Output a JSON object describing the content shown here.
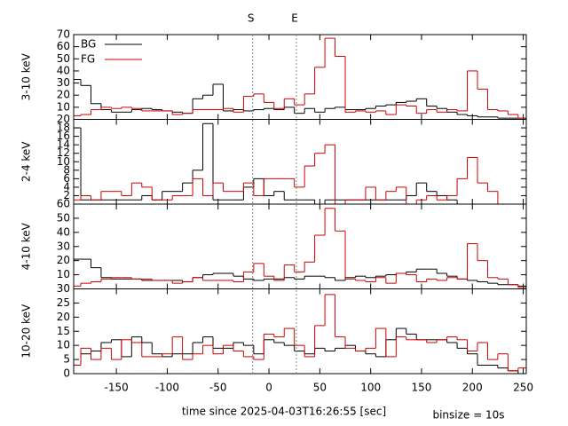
{
  "x_axis": {
    "label": "time since 2025-04-03T16:26:55 [sec]",
    "xlim": [
      -192,
      253
    ],
    "xticks": [
      -150,
      -100,
      -50,
      0,
      50,
      100,
      150,
      200,
      250
    ],
    "bins": [
      -195,
      -185,
      -175,
      -165,
      -155,
      -145,
      -135,
      -125,
      -115,
      -105,
      -95,
      -85,
      -75,
      -65,
      -55,
      -45,
      -35,
      -25,
      -15,
      -5,
      5,
      15,
      25,
      35,
      45,
      55,
      65,
      75,
      85,
      95,
      105,
      115,
      125,
      135,
      145,
      155,
      165,
      175,
      185,
      195,
      205,
      215,
      225,
      235,
      245,
      255
    ]
  },
  "annotation": "binsize = 10s",
  "markers": [
    {
      "label": "S",
      "x": -16
    },
    {
      "label": "E",
      "x": 27
    }
  ],
  "chart_data": [
    {
      "type": "histogram",
      "ylabel": "3-10 keV",
      "ylim": [
        0,
        70
      ],
      "yticks": [
        10,
        20,
        30,
        40,
        50,
        60,
        70
      ],
      "legend": "upper left",
      "series": [
        {
          "name": "BG",
          "color": "#000000",
          "values": [
            33,
            28,
            13,
            8,
            6,
            6,
            8,
            9,
            8,
            7,
            6,
            5,
            17,
            20,
            29,
            7,
            8,
            7,
            8,
            9,
            8,
            10,
            5,
            9,
            6,
            9,
            10,
            8,
            8,
            9,
            11,
            12,
            14,
            15,
            17,
            11,
            9,
            6,
            4,
            3,
            2,
            2,
            1,
            1,
            1
          ]
        },
        {
          "name": "FG",
          "color": "#cc0000",
          "values": [
            3,
            4,
            8,
            10,
            9,
            10,
            9,
            7,
            7,
            7,
            4,
            5,
            8,
            8,
            8,
            9,
            6,
            19,
            21,
            14,
            9,
            17,
            12,
            21,
            43,
            67,
            52,
            6,
            7,
            6,
            7,
            4,
            12,
            11,
            5,
            8,
            6,
            8,
            7,
            40,
            25,
            8,
            7,
            4,
            1
          ]
        }
      ]
    },
    {
      "type": "histogram",
      "ylabel": "2-4 keV",
      "ylim": [
        0,
        20
      ],
      "yticks": [
        2,
        4,
        6,
        8,
        10,
        12,
        14,
        16,
        18,
        20
      ],
      "series": [
        {
          "name": "BG",
          "color": "#000000",
          "values": [
            18,
            1,
            1,
            1,
            1,
            1,
            1,
            2,
            1,
            3,
            3,
            5,
            8,
            19,
            1,
            1,
            1,
            4,
            6,
            2,
            3,
            1,
            1,
            1,
            0,
            1,
            1,
            1,
            1,
            1,
            1,
            1,
            1,
            2,
            5,
            3,
            2,
            1,
            0,
            0,
            0,
            0,
            0,
            0,
            0
          ]
        },
        {
          "name": "FG",
          "color": "#cc0000",
          "values": [
            1,
            2,
            1,
            3,
            3,
            2,
            5,
            4,
            1,
            1,
            2,
            2,
            6,
            2,
            5,
            3,
            3,
            5,
            2,
            6,
            6,
            6,
            4,
            9,
            12,
            14,
            0,
            1,
            1,
            4,
            1,
            3,
            4,
            0,
            1,
            2,
            1,
            2,
            6,
            11,
            5,
            3,
            0,
            0,
            0
          ]
        }
      ]
    },
    {
      "type": "histogram",
      "ylabel": "4-10 keV",
      "ylim": [
        0,
        60
      ],
      "yticks": [
        10,
        20,
        30,
        40,
        50,
        60
      ],
      "series": [
        {
          "name": "BG",
          "color": "#000000",
          "values": [
            21,
            21,
            15,
            8,
            7,
            7,
            7,
            6,
            6,
            6,
            6,
            5,
            8,
            10,
            11,
            11,
            9,
            7,
            6,
            7,
            7,
            8,
            7,
            9,
            9,
            8,
            6,
            8,
            9,
            8,
            9,
            10,
            11,
            12,
            14,
            14,
            11,
            9,
            7,
            6,
            5,
            4,
            3,
            3,
            2
          ]
        },
        {
          "name": "FG",
          "color": "#cc0000",
          "values": [
            2,
            4,
            5,
            7,
            8,
            8,
            7,
            7,
            6,
            6,
            4,
            5,
            8,
            6,
            6,
            6,
            5,
            12,
            18,
            9,
            6,
            17,
            12,
            19,
            38,
            57,
            41,
            7,
            6,
            5,
            8,
            4,
            11,
            10,
            5,
            7,
            6,
            8,
            7,
            32,
            20,
            8,
            7,
            3,
            1
          ]
        }
      ]
    },
    {
      "type": "histogram",
      "ylabel": "10-20 keV",
      "ylim": [
        0,
        30
      ],
      "yticks": [
        0,
        5,
        10,
        15,
        20,
        25,
        30
      ],
      "series": [
        {
          "name": "BG",
          "color": "#000000",
          "values": [
            3,
            7,
            8,
            11,
            12,
            6,
            13,
            11,
            7,
            6,
            7,
            7,
            11,
            13,
            9,
            9,
            11,
            10,
            7,
            12,
            11,
            10,
            8,
            7,
            9,
            8,
            9,
            10,
            8,
            7,
            6,
            12,
            16,
            14,
            12,
            12,
            12,
            11,
            9,
            7,
            3,
            3,
            2,
            1,
            0
          ]
        },
        {
          "name": "FG",
          "color": "#cc0000",
          "values": [
            3,
            9,
            5,
            9,
            5,
            12,
            11,
            6,
            6,
            7,
            13,
            5,
            7,
            10,
            7,
            10,
            8,
            6,
            5,
            14,
            13,
            16,
            10,
            6,
            17,
            28,
            13,
            9,
            8,
            9,
            16,
            6,
            13,
            12,
            12,
            11,
            12,
            13,
            12,
            8,
            11,
            5,
            7,
            1,
            2
          ]
        }
      ]
    }
  ]
}
